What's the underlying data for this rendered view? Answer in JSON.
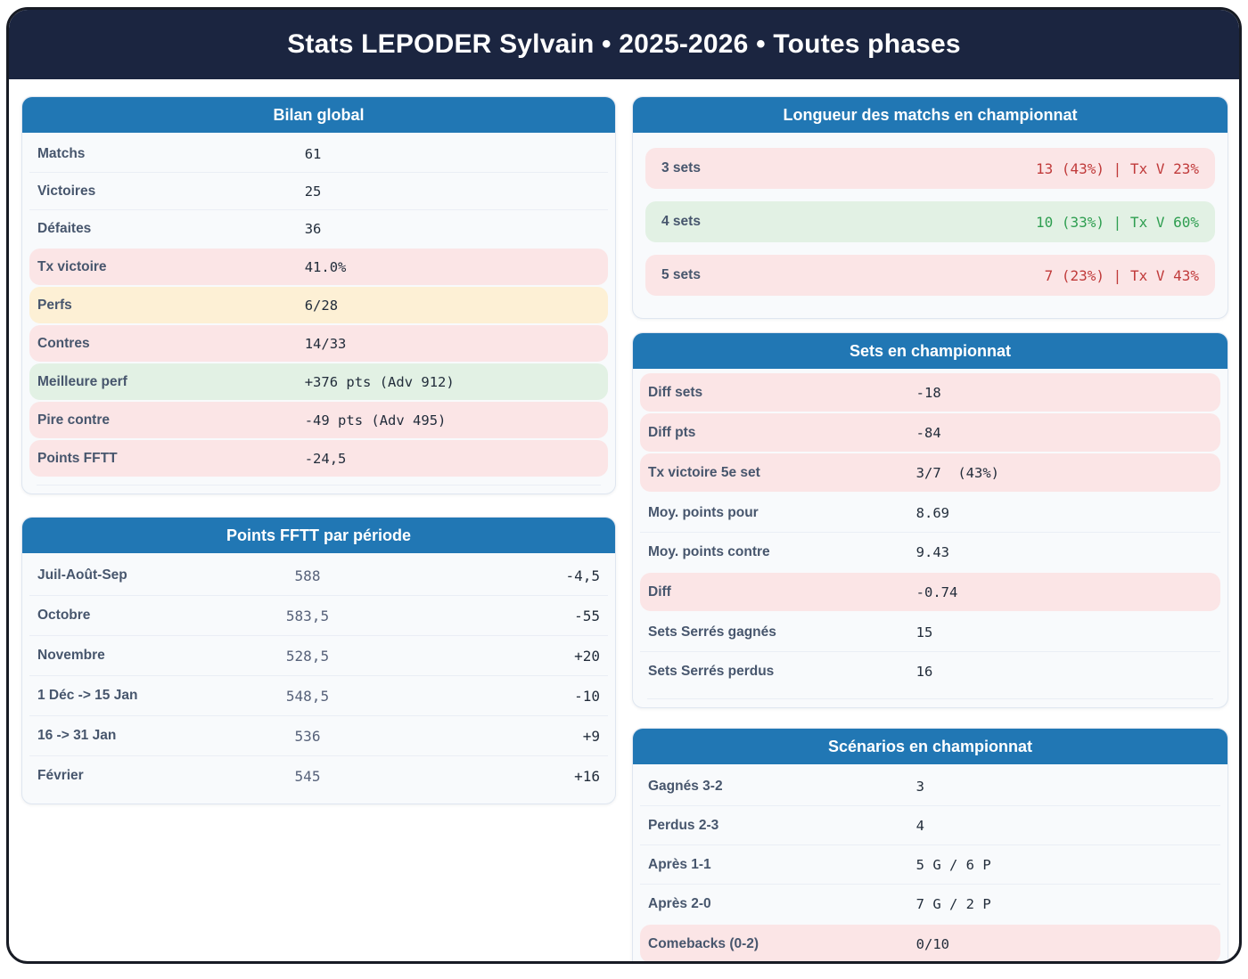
{
  "title": "Stats LEPODER Sylvain • 2025-2026 • Toutes phases",
  "colors": {
    "navy_band": "#1b2540",
    "card_header_blue": "#2177b4",
    "card_bg": "#f8fafc",
    "pink_bg": "#fbe5e6",
    "yellow_bg": "#fdf0d5",
    "green_bg": "#e2f1e4",
    "red_text": "#c03a3a",
    "green_text": "#2e9e50",
    "label_text": "#47566d",
    "value_text": "#222d3b"
  },
  "cards": {
    "bilan": {
      "title": "Bilan global",
      "rows": [
        {
          "label": "Matchs",
          "value": "61",
          "tone": "plain"
        },
        {
          "label": "Victoires",
          "value": "25",
          "tone": "plain"
        },
        {
          "label": "Défaites",
          "value": "36",
          "tone": "plain"
        },
        {
          "label": "Tx victoire",
          "value": "41.0%",
          "tone": "pink"
        },
        {
          "label": "Perfs",
          "value": "6/28",
          "tone": "yellow"
        },
        {
          "label": "Contres",
          "value": "14/33",
          "tone": "pink"
        },
        {
          "label": "Meilleure perf",
          "value": "+376 pts (Adv 912)",
          "tone": "green"
        },
        {
          "label": "Pire contre",
          "value": "-49 pts (Adv 495)",
          "tone": "pink"
        },
        {
          "label": "Points FFTT",
          "value": "-24,5",
          "tone": "pink"
        }
      ]
    },
    "periodes": {
      "title": "Points FFTT par période",
      "rows": [
        {
          "label": "Juil-Août-Sep",
          "points": "588",
          "delta": "-4,5"
        },
        {
          "label": "Octobre",
          "points": "583,5",
          "delta": "-55"
        },
        {
          "label": "Novembre",
          "points": "528,5",
          "delta": "+20"
        },
        {
          "label": "1 Déc -> 15 Jan",
          "points": "548,5",
          "delta": "-10"
        },
        {
          "label": "16 -> 31 Jan",
          "points": "536",
          "delta": "+9"
        },
        {
          "label": "Février",
          "points": "545",
          "delta": "+16"
        }
      ]
    },
    "longueur": {
      "title": "Longueur des matchs en championnat",
      "rows": [
        {
          "label": "3 sets",
          "value": "13 (43%) | Tx V 23%",
          "tone": "red"
        },
        {
          "label": "4 sets",
          "value": "10 (33%) | Tx V 60%",
          "tone": "green"
        },
        {
          "label": "5 sets",
          "value": "7 (23%) | Tx V 43%",
          "tone": "red"
        }
      ]
    },
    "sets": {
      "title": "Sets en championnat",
      "rows": [
        {
          "label": "Diff sets",
          "value": "-18",
          "tone": "pink"
        },
        {
          "label": "Diff pts",
          "value": "-84",
          "tone": "pink"
        },
        {
          "label": "Tx victoire 5e set",
          "value": "3/7  (43%)",
          "tone": "pink"
        },
        {
          "label": "Moy. points pour",
          "value": "8.69",
          "tone": "plain"
        },
        {
          "label": "Moy. points contre",
          "value": "9.43",
          "tone": "plain"
        },
        {
          "label": "Diff",
          "value": "-0.74",
          "tone": "pink"
        },
        {
          "label": "Sets Serrés gagnés",
          "value": "15",
          "tone": "plain"
        },
        {
          "label": "Sets Serrés perdus",
          "value": "16",
          "tone": "plain"
        }
      ]
    },
    "scenarios": {
      "title": "Scénarios en championnat",
      "rows": [
        {
          "label": "Gagnés 3-2",
          "value": "3",
          "tone": "plain"
        },
        {
          "label": "Perdus 2-3",
          "value": "4",
          "tone": "plain"
        },
        {
          "label": "Après 1-1",
          "value": "5 G / 6 P",
          "tone": "plain"
        },
        {
          "label": "Après 2-0",
          "value": "7 G / 2 P",
          "tone": "plain"
        },
        {
          "label": "Comebacks (0-2)",
          "value": "0/10",
          "tone": "pink"
        }
      ]
    }
  }
}
